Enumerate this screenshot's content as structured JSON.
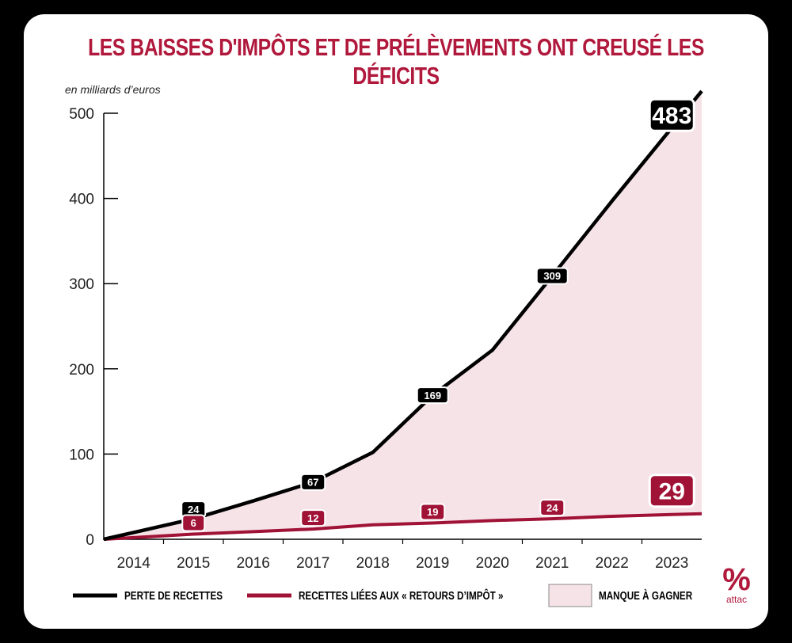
{
  "colors": {
    "background": "#000000",
    "card": "#ffffff",
    "accent": "#b0183c",
    "loss_line": "#000000",
    "returns_line": "#a01236",
    "gap_fill": "#f6e3e8"
  },
  "logo": {
    "symbol": "%",
    "text": "attac"
  },
  "chart_data": {
    "type": "line",
    "title": "LES BAISSES D'IMPÔTS ET DE PRÉLÈVEMENTS ONT CREUSÉ LES DÉFICITS",
    "subtitle": "en milliards d’euros",
    "x": [
      2014,
      2015,
      2016,
      2017,
      2018,
      2019,
      2020,
      2021,
      2022,
      2023
    ],
    "ylim": [
      0,
      500
    ],
    "yticks": [
      0,
      100,
      200,
      300,
      400,
      500
    ],
    "grid": false,
    "legend_position": "bottom",
    "series": [
      {
        "name": "PERTE DE RECETTES",
        "color": "#000000",
        "values": [
          8,
          24,
          45,
          67,
          102,
          169,
          222,
          309,
          397,
          483
        ],
        "labeled": [
          1,
          3,
          5,
          7,
          9
        ]
      },
      {
        "name": "RECETTES LIÉES AUX « RETOURS D’IMPÔT »",
        "color": "#a01236",
        "values": [
          2,
          6,
          9,
          12,
          17,
          19,
          22,
          24,
          27,
          29
        ],
        "labeled": [
          1,
          3,
          5,
          7,
          9
        ]
      }
    ],
    "area": {
      "name": "MANQUE À GAGNER",
      "between": [
        0,
        1
      ]
    }
  }
}
